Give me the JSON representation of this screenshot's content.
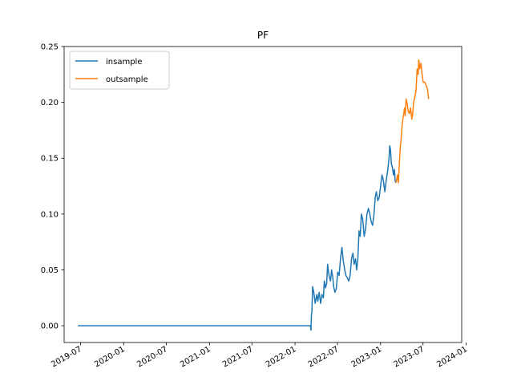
{
  "chart_data": {
    "type": "line",
    "title": "PF",
    "xlabel": "",
    "ylabel": "",
    "xlim": [
      "2019-04-22",
      "2023-12-13"
    ],
    "ylim": [
      -0.015,
      0.25
    ],
    "x_ticks": [
      "2019-07",
      "2020-01",
      "2020-07",
      "2021-01",
      "2021-07",
      "2022-01",
      "2022-07",
      "2023-01",
      "2023-07",
      "2024-01"
    ],
    "x_tick_dates": [
      "2019-07-01",
      "2020-01-01",
      "2020-07-01",
      "2021-01-01",
      "2021-07-01",
      "2022-01-01",
      "2022-07-01",
      "2023-01-01",
      "2023-07-01",
      "2024-01-01"
    ],
    "y_ticks": [
      "0.00",
      "0.05",
      "0.10",
      "0.15",
      "0.20",
      "0.25"
    ],
    "y_tick_values": [
      0.0,
      0.05,
      0.1,
      0.15,
      0.2,
      0.25
    ],
    "grid": false,
    "legend_position": "top-left",
    "series": [
      {
        "name": "insample",
        "color": "#1f77b4",
        "points": [
          [
            "2019-06-20",
            0.0
          ],
          [
            "2022-03-08",
            0.0
          ],
          [
            "2022-03-10",
            -0.004
          ],
          [
            "2022-03-12",
            0.01
          ],
          [
            "2022-03-14",
            0.012
          ],
          [
            "2022-03-17",
            0.035
          ],
          [
            "2022-03-22",
            0.03
          ],
          [
            "2022-03-28",
            0.02
          ],
          [
            "2022-04-04",
            0.028
          ],
          [
            "2022-04-08",
            0.022
          ],
          [
            "2022-04-14",
            0.03
          ],
          [
            "2022-04-20",
            0.02
          ],
          [
            "2022-04-26",
            0.028
          ],
          [
            "2022-05-02",
            0.025
          ],
          [
            "2022-05-06",
            0.04
          ],
          [
            "2022-05-11",
            0.034
          ],
          [
            "2022-05-16",
            0.038
          ],
          [
            "2022-05-20",
            0.055
          ],
          [
            "2022-05-26",
            0.045
          ],
          [
            "2022-06-01",
            0.04
          ],
          [
            "2022-06-06",
            0.05
          ],
          [
            "2022-06-10",
            0.045
          ],
          [
            "2022-06-15",
            0.035
          ],
          [
            "2022-06-20",
            0.03
          ],
          [
            "2022-06-26",
            0.033
          ],
          [
            "2022-07-02",
            0.048
          ],
          [
            "2022-07-08",
            0.045
          ],
          [
            "2022-07-14",
            0.06
          ],
          [
            "2022-07-20",
            0.07
          ],
          [
            "2022-07-26",
            0.058
          ],
          [
            "2022-08-01",
            0.05
          ],
          [
            "2022-08-06",
            0.045
          ],
          [
            "2022-08-12",
            0.043
          ],
          [
            "2022-08-18",
            0.04
          ],
          [
            "2022-08-24",
            0.045
          ],
          [
            "2022-08-30",
            0.06
          ],
          [
            "2022-09-05",
            0.065
          ],
          [
            "2022-09-10",
            0.055
          ],
          [
            "2022-09-16",
            0.06
          ],
          [
            "2022-09-21",
            0.05
          ],
          [
            "2022-09-26",
            0.06
          ],
          [
            "2022-10-01",
            0.085
          ],
          [
            "2022-10-06",
            0.08
          ],
          [
            "2022-10-11",
            0.1
          ],
          [
            "2022-10-17",
            0.095
          ],
          [
            "2022-10-23",
            0.08
          ],
          [
            "2022-10-29",
            0.087
          ],
          [
            "2022-11-04",
            0.1
          ],
          [
            "2022-11-10",
            0.105
          ],
          [
            "2022-11-16",
            0.1
          ],
          [
            "2022-11-22",
            0.093
          ],
          [
            "2022-11-28",
            0.09
          ],
          [
            "2022-12-04",
            0.1
          ],
          [
            "2022-12-09",
            0.115
          ],
          [
            "2022-12-14",
            0.12
          ],
          [
            "2022-12-20",
            0.112
          ],
          [
            "2022-12-26",
            0.115
          ],
          [
            "2023-01-01",
            0.125
          ],
          [
            "2023-01-07",
            0.135
          ],
          [
            "2023-01-13",
            0.13
          ],
          [
            "2023-01-19",
            0.12
          ],
          [
            "2023-01-25",
            0.13
          ],
          [
            "2023-02-01",
            0.14
          ],
          [
            "2023-02-06",
            0.15
          ],
          [
            "2023-02-09",
            0.161
          ],
          [
            "2023-02-12",
            0.158
          ],
          [
            "2023-02-16",
            0.145
          ],
          [
            "2023-02-20",
            0.142
          ],
          [
            "2023-02-25",
            0.135
          ],
          [
            "2023-03-01",
            0.14
          ],
          [
            "2023-03-04",
            0.13
          ],
          [
            "2023-03-07",
            0.128
          ]
        ]
      },
      {
        "name": "outsample",
        "color": "#ff7f0e",
        "points": [
          [
            "2023-03-07",
            0.128
          ],
          [
            "2023-03-10",
            0.13
          ],
          [
            "2023-03-14",
            0.135
          ],
          [
            "2023-03-18",
            0.128
          ],
          [
            "2023-03-22",
            0.145
          ],
          [
            "2023-03-26",
            0.16
          ],
          [
            "2023-03-30",
            0.168
          ],
          [
            "2023-04-03",
            0.18
          ],
          [
            "2023-04-06",
            0.185
          ],
          [
            "2023-04-10",
            0.19
          ],
          [
            "2023-04-13",
            0.195
          ],
          [
            "2023-04-16",
            0.188
          ],
          [
            "2023-04-20",
            0.203
          ],
          [
            "2023-04-25",
            0.198
          ],
          [
            "2023-04-29",
            0.192
          ],
          [
            "2023-05-04",
            0.19
          ],
          [
            "2023-05-09",
            0.195
          ],
          [
            "2023-05-14",
            0.185
          ],
          [
            "2023-05-18",
            0.19
          ],
          [
            "2023-05-22",
            0.2
          ],
          [
            "2023-05-27",
            0.205
          ],
          [
            "2023-06-01",
            0.21
          ],
          [
            "2023-06-06",
            0.23
          ],
          [
            "2023-06-10",
            0.225
          ],
          [
            "2023-06-13",
            0.238
          ],
          [
            "2023-06-17",
            0.23
          ],
          [
            "2023-06-22",
            0.235
          ],
          [
            "2023-06-27",
            0.225
          ],
          [
            "2023-07-02",
            0.218
          ],
          [
            "2023-07-09",
            0.218
          ],
          [
            "2023-07-15",
            0.215
          ],
          [
            "2023-07-20",
            0.212
          ],
          [
            "2023-07-25",
            0.203
          ]
        ]
      }
    ]
  }
}
